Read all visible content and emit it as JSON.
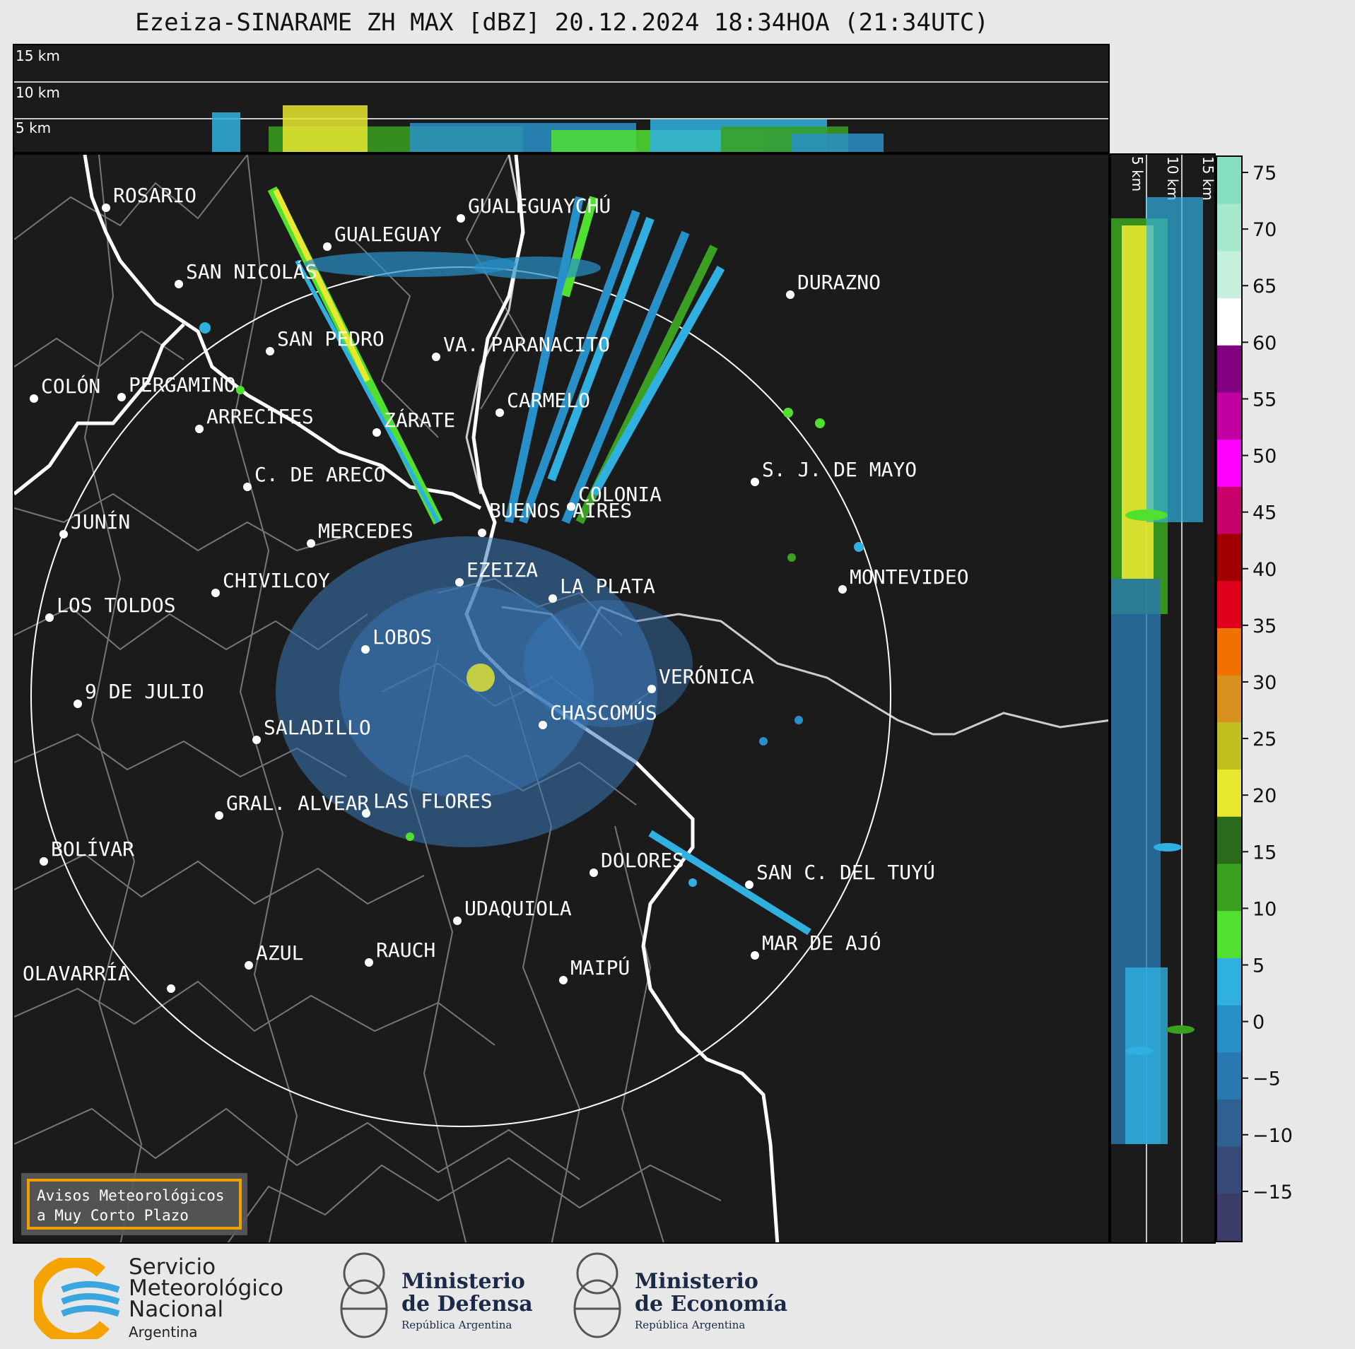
{
  "title": "Ezeiza-SINARAME ZH MAX [dBZ] 20.12.2024 18:34HOA (21:34UTC)",
  "top_panel": {
    "altitude_labels": [
      "15 km",
      "10 km",
      "5 km"
    ]
  },
  "side_panel": {
    "altitude_labels": [
      "5 km",
      "10 km",
      "15 km"
    ]
  },
  "cities": [
    {
      "name": "ROSARIO"
    },
    {
      "name": "GUALEGUAYCHÚ"
    },
    {
      "name": "GUALEGUAY"
    },
    {
      "name": "SAN NICOLÁS"
    },
    {
      "name": "DURAZNO"
    },
    {
      "name": "SAN PEDRO"
    },
    {
      "name": "VA. PARANACITO"
    },
    {
      "name": "COLÓN"
    },
    {
      "name": "PERGAMINO"
    },
    {
      "name": "CARMELO"
    },
    {
      "name": "ARRECIFES"
    },
    {
      "name": "ZÁRATE"
    },
    {
      "name": "S. J. DE MAYO"
    },
    {
      "name": "C. DE ARECO"
    },
    {
      "name": "COLONIA"
    },
    {
      "name": "JUNÍN"
    },
    {
      "name": "BUENOS AIRES"
    },
    {
      "name": "MERCEDES"
    },
    {
      "name": "MONTEVIDEO"
    },
    {
      "name": "EZEIZA"
    },
    {
      "name": "CHIVILCOY"
    },
    {
      "name": "LA PLATA"
    },
    {
      "name": "LOS TOLDOS"
    },
    {
      "name": "LOBOS"
    },
    {
      "name": "VERÓNICA"
    },
    {
      "name": "9 DE JULIO"
    },
    {
      "name": "CHASCOMÚS"
    },
    {
      "name": "SALADILLO"
    },
    {
      "name": "GRAL. ALVEAR"
    },
    {
      "name": "LAS FLORES"
    },
    {
      "name": "BOLÍVAR"
    },
    {
      "name": "DOLORES"
    },
    {
      "name": "SAN C. DEL TUYÚ"
    },
    {
      "name": "UDAQUIOLA"
    },
    {
      "name": "MAR DE AJÓ"
    },
    {
      "name": "AZUL"
    },
    {
      "name": "RAUCH"
    },
    {
      "name": "MAIPÚ"
    },
    {
      "name": "OLAVARRÍA"
    }
  ],
  "colorbar": {
    "ticks": [
      "75",
      "70",
      "65",
      "60",
      "55",
      "50",
      "45",
      "40",
      "35",
      "30",
      "25",
      "20",
      "15",
      "10",
      "5",
      "0",
      "−5",
      "−10",
      "−15"
    ],
    "colors": [
      "#86e0c0",
      "#a6e8cc",
      "#c4f0dc",
      "#ffffff",
      "#800080",
      "#c000a0",
      "#ff00ff",
      "#c8006a",
      "#a00000",
      "#e0001e",
      "#f07000",
      "#d89020",
      "#c0c020",
      "#e8e830",
      "#2a6a1a",
      "#3aa020",
      "#50e030",
      "#30b0e0",
      "#2890c8",
      "#2a78b0",
      "#2e6090",
      "#384a78",
      "#3c3c68"
    ]
  },
  "warning": {
    "line1": "Avisos Meteorológicos",
    "line2": "a Muy Corto Plazo"
  },
  "footer": {
    "smn_line1": "Servicio",
    "smn_line2": "Meteorológico",
    "smn_line3": "Nacional",
    "smn_country": "Argentina",
    "defensa_line1": "Ministerio",
    "defensa_line2": "de Defensa",
    "defensa_sub": "República Argentina",
    "economia_line1": "Ministerio",
    "economia_line2": "de Economía",
    "economia_sub": "República Argentina"
  }
}
